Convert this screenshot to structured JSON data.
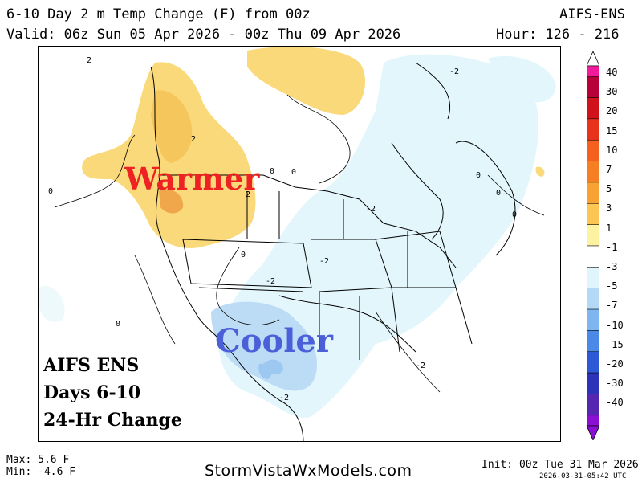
{
  "header": {
    "title": "6-10 Day 2 m Temp Change (F) from 00z",
    "model": "AIFS-ENS",
    "valid": "Valid: 06z Sun 05 Apr 2026 - 00z Thu 09 Apr 2026",
    "hours": "Hour: 126 - 216"
  },
  "map": {
    "warm_label": "Warmer",
    "cool_label": "Cooler",
    "overlay_lines": [
      "AIFS ENS",
      "Days 6-10",
      "24-Hr Change"
    ],
    "contour_labels": [
      "-2",
      "-2",
      "-2",
      "-2",
      "-2",
      "-2",
      "2",
      "2",
      "2",
      "0",
      "0",
      "0",
      "0",
      "0",
      "0",
      "0",
      "0"
    ],
    "colors": {
      "warm_light": "#f9d97a",
      "warm": "#f4c65c",
      "warm_core": "#f0a64a",
      "cool_light": "#e3f6fb",
      "cool": "#bcdcf6",
      "cool_core": "#9cc8f2",
      "warm_text": "#ee2222",
      "cool_text": "#4a5fd8"
    }
  },
  "colorbar": {
    "labels": [
      "40",
      "30",
      "20",
      "15",
      "10",
      "7",
      "5",
      "3",
      "1",
      "-1",
      "-3",
      "-5",
      "-7",
      "-10",
      "-15",
      "-20",
      "-30",
      "-40"
    ],
    "colors": [
      "#f11a9a",
      "#b5003a",
      "#d0131b",
      "#e8331c",
      "#f3601f",
      "#f67f23",
      "#f8a234",
      "#fbc654",
      "#fdf1a2",
      "#ffffff",
      "#dff4fb",
      "#b4d9f6",
      "#7eb7f0",
      "#4a8ae6",
      "#2e59d6",
      "#2d33b8",
      "#5526b0",
      "#8c10d3"
    ]
  },
  "footer": {
    "max": "Max: 5.6 F",
    "min": "Min: -4.6 F",
    "brand": "StormVistaWxModels.com",
    "init": "Init: 00z Tue 31 Mar 2026",
    "stamp": "2026-03-31-05:42 UTC"
  }
}
